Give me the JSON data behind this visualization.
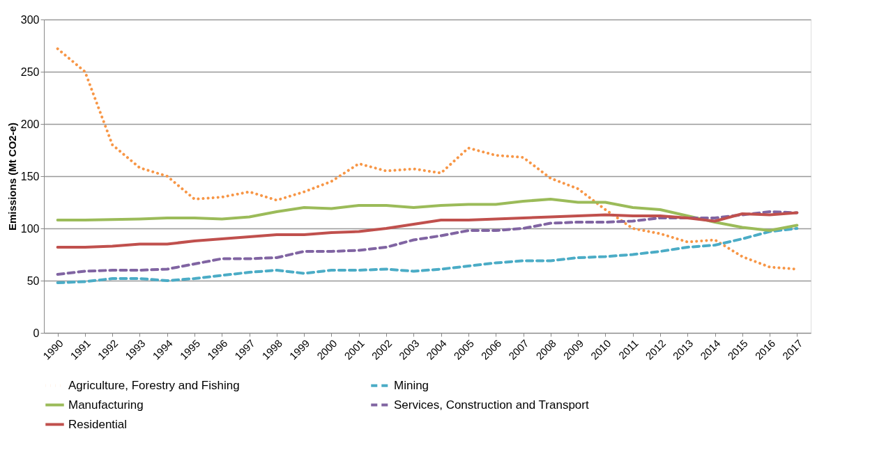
{
  "chart_data": {
    "type": "line",
    "ylabel": "Emissions (Mt CO2-e)",
    "categories": [
      "1990",
      "1991",
      "1992",
      "1993",
      "1994",
      "1995",
      "1996",
      "1997",
      "1998",
      "1999",
      "2000",
      "2001",
      "2002",
      "2003",
      "2004",
      "2005",
      "2006",
      "2007",
      "2008",
      "2009",
      "2010",
      "2011",
      "2012",
      "2013",
      "2014",
      "2015",
      "2016",
      "2017"
    ],
    "series": [
      {
        "name": "Agriculture, Forestry and Fishing",
        "color": "#f79646",
        "line_style": "dotted",
        "values": [
          272,
          250,
          180,
          158,
          150,
          128,
          130,
          135,
          127,
          135,
          145,
          162,
          155,
          157,
          153,
          177,
          170,
          168,
          148,
          138,
          118,
          100,
          95,
          87,
          89,
          73,
          63,
          61
        ]
      },
      {
        "name": "Mining",
        "color": "#4bacc6",
        "line_style": "dashed",
        "values": [
          48,
          49,
          52,
          52,
          50,
          52,
          55,
          58,
          60,
          57,
          60,
          60,
          61,
          59,
          61,
          64,
          67,
          69,
          69,
          72,
          73,
          75,
          78,
          82,
          84,
          90,
          97,
          100
        ]
      },
      {
        "name": "Manufacturing",
        "color": "#9bbb59",
        "line_style": "solid",
        "values": [
          108,
          108,
          108.5,
          109,
          110,
          110,
          109,
          111,
          116,
          120,
          119,
          122,
          122,
          120,
          122,
          123,
          123,
          126,
          128,
          125,
          125,
          120,
          118,
          112,
          106,
          101,
          98,
          103
        ]
      },
      {
        "name": "Services, Construction and Transport",
        "color": "#8064a2",
        "line_style": "dashed",
        "values": [
          56,
          59,
          60,
          60,
          61,
          66,
          71,
          71,
          72,
          78,
          78,
          79,
          82,
          89,
          93,
          98,
          98,
          100,
          105,
          106,
          106,
          107,
          110,
          110,
          110,
          113,
          116,
          115
        ]
      },
      {
        "name": "Residential",
        "color": "#c0504d",
        "line_style": "solid",
        "values": [
          82,
          82,
          83,
          85,
          85,
          88,
          90,
          92,
          94,
          94,
          96,
          97,
          100,
          104,
          108,
          108,
          109,
          110,
          111,
          112,
          113,
          112,
          112,
          110,
          107,
          114,
          113,
          115
        ]
      }
    ],
    "ylim": [
      0,
      300
    ],
    "yticks": [
      0,
      50,
      100,
      150,
      200,
      250,
      300
    ],
    "grid": "y",
    "legend": "bottom",
    "marker": "none"
  }
}
